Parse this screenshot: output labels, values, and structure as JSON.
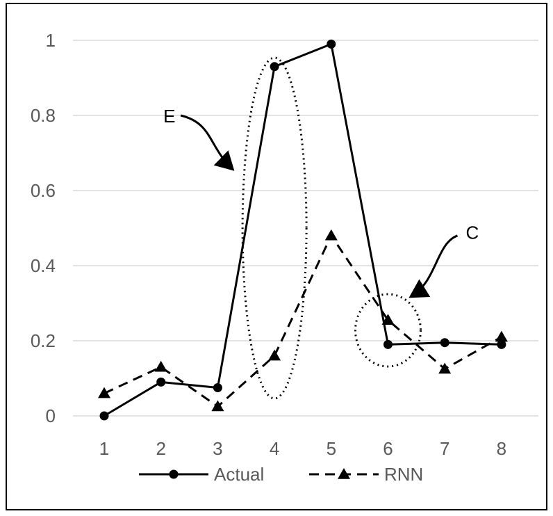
{
  "chart_data": {
    "type": "line",
    "title": "",
    "xlabel": "",
    "ylabel": "",
    "x": [
      1,
      2,
      3,
      4,
      5,
      6,
      7,
      8
    ],
    "xticks": [
      "1",
      "2",
      "3",
      "4",
      "5",
      "6",
      "7",
      "8"
    ],
    "ylim": [
      0,
      1
    ],
    "yticks": [
      "0",
      "0.2",
      "0.4",
      "0.6",
      "0.8",
      "1"
    ],
    "grid": true,
    "legend_position": "bottom",
    "series": [
      {
        "name": "Actual",
        "values": [
          0.0,
          0.09,
          0.075,
          0.93,
          0.99,
          0.19,
          0.195,
          0.19
        ],
        "marker": "circle",
        "line": "solid",
        "color": "#000000"
      },
      {
        "name": "RNN",
        "values": [
          0.06,
          0.13,
          0.025,
          0.16,
          0.48,
          0.255,
          0.125,
          0.21
        ],
        "marker": "triangle",
        "line": "dashed",
        "color": "#000000"
      }
    ],
    "annotations": [
      {
        "label": "E",
        "target_x": 4,
        "target_y": 0.5
      },
      {
        "label": "C",
        "target_x": 6,
        "target_y": 0.25
      }
    ]
  }
}
